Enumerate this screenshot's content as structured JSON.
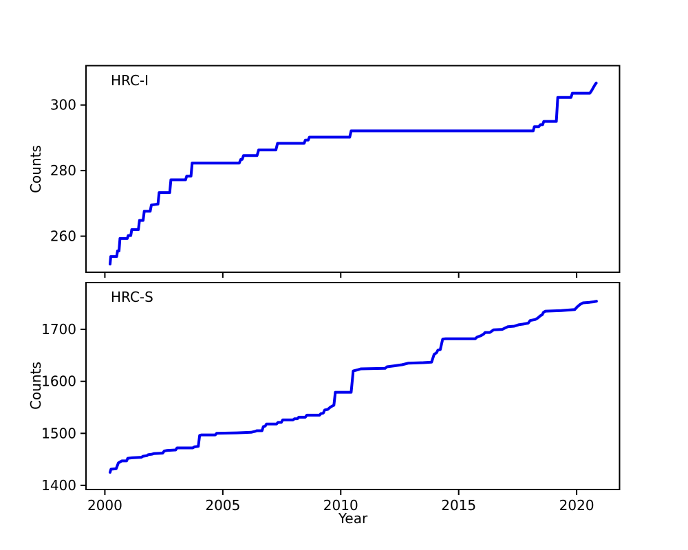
{
  "chart_data": [
    {
      "type": "line",
      "name": "hrc-i",
      "title": "HRC-I",
      "xlabel": "",
      "ylabel": "Counts",
      "xlim": [
        1999.2,
        2021.82
      ],
      "ylim": [
        249,
        312
      ],
      "xticks": [
        2000,
        2005,
        2010,
        2015,
        2020
      ],
      "show_xtick_labels": false,
      "yticks": [
        260,
        280,
        300
      ],
      "grid": false,
      "legend": "none",
      "line_color": "#0000ee",
      "line_width": 4,
      "points": [
        [
          2000.22,
          251.5
        ],
        [
          2000.25,
          253.8
        ],
        [
          2000.5,
          253.8
        ],
        [
          2000.54,
          255.5
        ],
        [
          2000.6,
          255.5
        ],
        [
          2000.64,
          259.3
        ],
        [
          2000.95,
          259.3
        ],
        [
          2000.99,
          260.2
        ],
        [
          2001.1,
          260.2
        ],
        [
          2001.14,
          262.0
        ],
        [
          2001.42,
          262.0
        ],
        [
          2001.47,
          264.8
        ],
        [
          2001.62,
          264.8
        ],
        [
          2001.67,
          267.6
        ],
        [
          2001.92,
          267.6
        ],
        [
          2001.97,
          269.5
        ],
        [
          2002.25,
          269.8
        ],
        [
          2002.3,
          273.3
        ],
        [
          2002.75,
          273.3
        ],
        [
          2002.8,
          277.2
        ],
        [
          2003.42,
          277.2
        ],
        [
          2003.47,
          278.3
        ],
        [
          2003.65,
          278.3
        ],
        [
          2003.7,
          282.3
        ],
        [
          2005.7,
          282.3
        ],
        [
          2005.76,
          283.4
        ],
        [
          2005.82,
          283.4
        ],
        [
          2005.88,
          284.6
        ],
        [
          2006.45,
          284.6
        ],
        [
          2006.52,
          286.3
        ],
        [
          2007.25,
          286.3
        ],
        [
          2007.32,
          288.3
        ],
        [
          2008.45,
          288.3
        ],
        [
          2008.5,
          289.3
        ],
        [
          2008.62,
          289.3
        ],
        [
          2008.67,
          290.2
        ],
        [
          2010.38,
          290.2
        ],
        [
          2010.44,
          292.1
        ],
        [
          2018.16,
          292.1
        ],
        [
          2018.21,
          293.4
        ],
        [
          2018.4,
          293.4
        ],
        [
          2018.46,
          294.0
        ],
        [
          2018.56,
          294.0
        ],
        [
          2018.61,
          295.0
        ],
        [
          2019.14,
          295.0
        ],
        [
          2019.2,
          302.3
        ],
        [
          2019.76,
          302.3
        ],
        [
          2019.82,
          303.6
        ],
        [
          2020.56,
          303.6
        ],
        [
          2020.63,
          304.3
        ],
        [
          2020.78,
          306.2
        ],
        [
          2020.83,
          306.7
        ]
      ]
    },
    {
      "type": "line",
      "name": "hrc-s",
      "title": "HRC-S",
      "xlabel": "Year",
      "ylabel": "Counts",
      "xlim": [
        1999.2,
        2021.82
      ],
      "ylim": [
        1392,
        1790
      ],
      "xticks": [
        2000,
        2005,
        2010,
        2015,
        2020
      ],
      "show_xtick_labels": true,
      "yticks": [
        1400,
        1500,
        1600,
        1700
      ],
      "grid": false,
      "legend": "none",
      "line_color": "#0000ee",
      "line_width": 4,
      "points": [
        [
          2000.22,
          1425
        ],
        [
          2000.26,
          1431
        ],
        [
          2000.48,
          1432
        ],
        [
          2000.53,
          1438
        ],
        [
          2000.57,
          1443
        ],
        [
          2000.72,
          1447
        ],
        [
          2000.92,
          1447
        ],
        [
          2000.97,
          1452
        ],
        [
          2001.15,
          1453
        ],
        [
          2001.55,
          1454
        ],
        [
          2001.62,
          1456
        ],
        [
          2001.78,
          1457
        ],
        [
          2001.84,
          1459
        ],
        [
          2002.0,
          1460
        ],
        [
          2002.08,
          1461
        ],
        [
          2002.45,
          1462
        ],
        [
          2002.52,
          1466
        ],
        [
          2002.62,
          1467
        ],
        [
          2003.0,
          1468
        ],
        [
          2003.06,
          1472
        ],
        [
          2003.72,
          1472
        ],
        [
          2003.8,
          1474
        ],
        [
          2003.96,
          1475
        ],
        [
          2004.02,
          1496
        ],
        [
          2004.1,
          1497
        ],
        [
          2004.68,
          1497
        ],
        [
          2004.74,
          1500
        ],
        [
          2005.6,
          1501
        ],
        [
          2006.2,
          1502
        ],
        [
          2006.38,
          1504
        ],
        [
          2006.44,
          1505
        ],
        [
          2006.66,
          1505
        ],
        [
          2006.72,
          1513
        ],
        [
          2006.8,
          1514
        ],
        [
          2006.85,
          1518
        ],
        [
          2007.28,
          1518
        ],
        [
          2007.34,
          1521
        ],
        [
          2007.48,
          1521
        ],
        [
          2007.54,
          1526
        ],
        [
          2007.98,
          1526
        ],
        [
          2008.04,
          1528
        ],
        [
          2008.16,
          1528
        ],
        [
          2008.22,
          1531
        ],
        [
          2008.5,
          1531
        ],
        [
          2008.56,
          1535
        ],
        [
          2009.1,
          1535
        ],
        [
          2009.16,
          1538
        ],
        [
          2009.26,
          1539
        ],
        [
          2009.32,
          1545
        ],
        [
          2009.45,
          1546
        ],
        [
          2009.55,
          1550
        ],
        [
          2009.66,
          1553
        ],
        [
          2009.71,
          1554
        ],
        [
          2009.77,
          1579
        ],
        [
          2010.44,
          1579
        ],
        [
          2010.53,
          1620
        ],
        [
          2010.7,
          1622
        ],
        [
          2010.85,
          1624
        ],
        [
          2011.88,
          1625
        ],
        [
          2011.96,
          1628
        ],
        [
          2012.3,
          1630
        ],
        [
          2012.6,
          1632
        ],
        [
          2012.87,
          1635
        ],
        [
          2013.5,
          1636
        ],
        [
          2013.85,
          1637
        ],
        [
          2013.96,
          1652
        ],
        [
          2014.06,
          1655
        ],
        [
          2014.12,
          1660
        ],
        [
          2014.22,
          1661
        ],
        [
          2014.32,
          1681
        ],
        [
          2014.45,
          1682
        ],
        [
          2015.7,
          1682
        ],
        [
          2015.78,
          1685
        ],
        [
          2015.95,
          1688
        ],
        [
          2016.06,
          1691
        ],
        [
          2016.12,
          1694
        ],
        [
          2016.32,
          1694
        ],
        [
          2016.48,
          1699
        ],
        [
          2016.85,
          1700
        ],
        [
          2016.98,
          1703
        ],
        [
          2017.08,
          1705
        ],
        [
          2017.35,
          1706
        ],
        [
          2017.55,
          1709
        ],
        [
          2017.72,
          1710
        ],
        [
          2017.95,
          1712
        ],
        [
          2018.03,
          1717
        ],
        [
          2018.25,
          1719
        ],
        [
          2018.36,
          1722
        ],
        [
          2018.46,
          1726
        ],
        [
          2018.54,
          1728
        ],
        [
          2018.6,
          1733
        ],
        [
          2018.68,
          1735
        ],
        [
          2019.35,
          1736
        ],
        [
          2019.92,
          1738
        ],
        [
          2020.02,
          1743
        ],
        [
          2020.15,
          1748
        ],
        [
          2020.27,
          1751
        ],
        [
          2020.55,
          1752
        ],
        [
          2020.72,
          1753
        ],
        [
          2020.84,
          1754
        ]
      ]
    }
  ],
  "styles": {
    "axis_color": "#000000",
    "background": "#ffffff",
    "tick_font_size": 20,
    "label_font_size": 20
  }
}
